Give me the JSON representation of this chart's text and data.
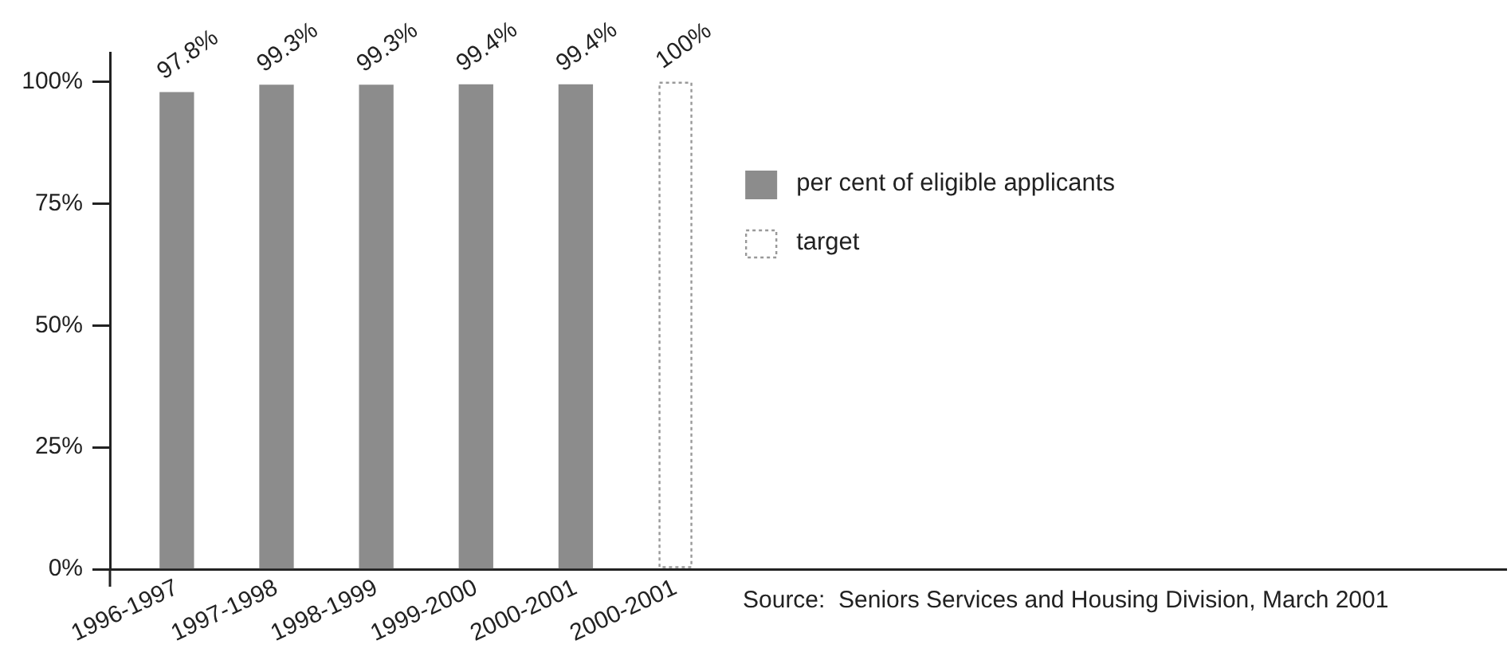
{
  "chart_data": {
    "type": "bar",
    "categories": [
      "1996-1997",
      "1997-1998",
      "1998-1999",
      "1999-2000",
      "2000-2001",
      "2000-2001"
    ],
    "series": [
      {
        "name": "per cent of eligible applicants",
        "color": "#8c8c8c",
        "values": [
          97.8,
          99.3,
          99.3,
          99.4,
          99.4,
          null
        ],
        "value_labels": [
          "97.8%",
          "99.3%",
          "99.3%",
          "99.4%",
          "99.4%",
          null
        ]
      },
      {
        "name": "target",
        "color": "#999999",
        "line_style": "dotted",
        "values": [
          null,
          null,
          null,
          null,
          null,
          100
        ],
        "value_labels": [
          null,
          null,
          null,
          null,
          null,
          "100%"
        ]
      }
    ],
    "ylim": [
      0,
      106
    ],
    "yticks": [
      {
        "value": 0,
        "label": "0%"
      },
      {
        "value": 25,
        "label": "25%"
      },
      {
        "value": 50,
        "label": "50%"
      },
      {
        "value": 75,
        "label": "75%"
      },
      {
        "value": 100,
        "label": "100%"
      }
    ],
    "grid": false,
    "legend": "top",
    "annotations": [
      "Source:  Seniors Services and Housing Division, March 2001"
    ]
  }
}
